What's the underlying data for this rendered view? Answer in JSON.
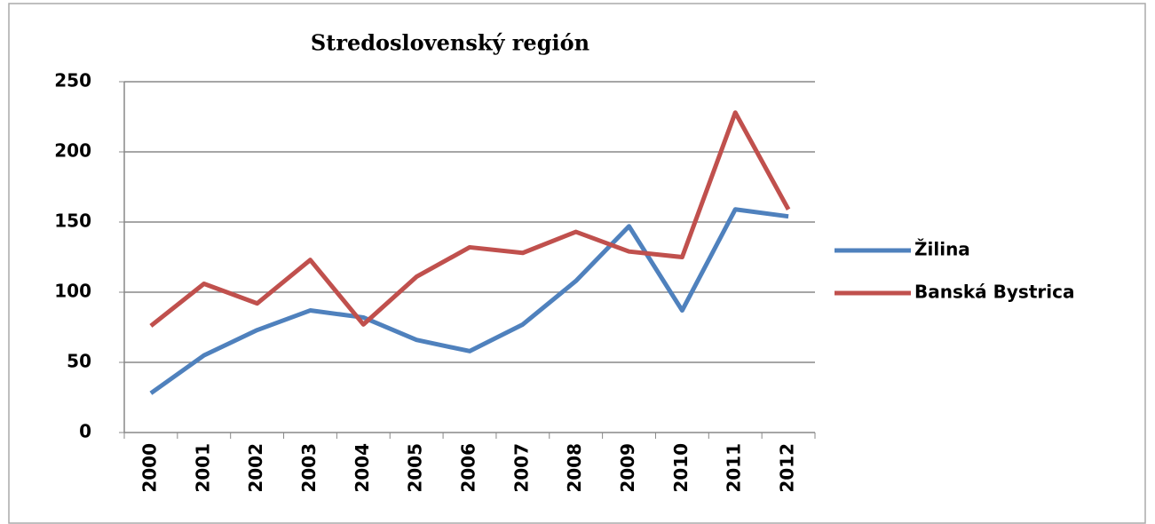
{
  "chart_data": {
    "type": "line",
    "title": "Stredoslovenský región",
    "categories": [
      "2000",
      "2001",
      "2002",
      "2003",
      "2004",
      "2005",
      "2006",
      "2007",
      "2008",
      "2009",
      "2010",
      "2011",
      "2012"
    ],
    "series": [
      {
        "name": "Žilina",
        "color": "#4f81bd",
        "values": [
          28,
          55,
          73,
          87,
          82,
          66,
          58,
          77,
          108,
          147,
          87,
          159,
          154
        ]
      },
      {
        "name": "Banská Bystrica",
        "color": "#c0504d",
        "values": [
          76,
          106,
          92,
          123,
          77,
          111,
          132,
          128,
          143,
          129,
          125,
          228,
          159
        ]
      }
    ],
    "ylim": [
      0,
      250
    ],
    "yticks": [
      0,
      50,
      100,
      150,
      200,
      250
    ],
    "grid": true,
    "legend": "right"
  }
}
